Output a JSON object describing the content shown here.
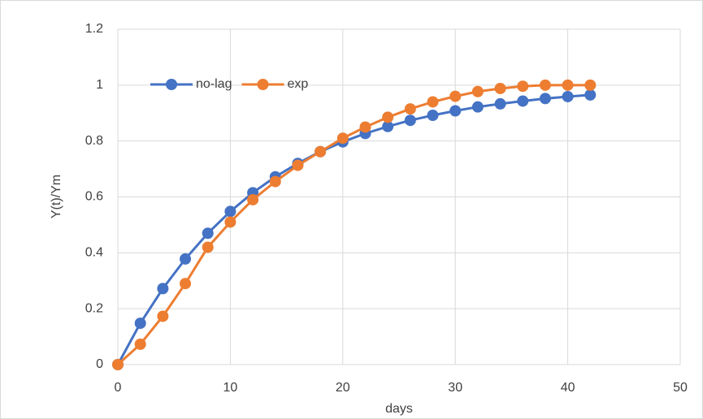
{
  "chart_data": {
    "type": "line",
    "x_label": "days",
    "y_label": "Y(t)/Ym",
    "x": [
      0,
      2,
      4,
      6,
      8,
      10,
      12,
      14,
      16,
      18,
      20,
      22,
      24,
      26,
      28,
      30,
      32,
      34,
      36,
      38,
      40,
      42
    ],
    "series": [
      {
        "name": "no-lag",
        "color": "#4472c4",
        "values": [
          0,
          0.148,
          0.272,
          0.378,
          0.47,
          0.548,
          0.615,
          0.672,
          0.72,
          0.762,
          0.797,
          0.827,
          0.852,
          0.874,
          0.892,
          0.908,
          0.922,
          0.933,
          0.943,
          0.952,
          0.959,
          0.965
        ]
      },
      {
        "name": "exp",
        "color": "#ed7d31",
        "values": [
          0,
          0.073,
          0.173,
          0.29,
          0.42,
          0.51,
          0.59,
          0.655,
          0.713,
          0.762,
          0.81,
          0.85,
          0.885,
          0.915,
          0.94,
          0.96,
          0.977,
          0.988,
          0.996,
          1.0,
          1.0,
          1.0
        ]
      }
    ],
    "xlim": [
      0,
      50
    ],
    "xticks": [
      0,
      10,
      20,
      30,
      40,
      50
    ],
    "ylim": [
      0,
      1.2
    ],
    "yticks": [
      0,
      0.2,
      0.4,
      0.6,
      0.8,
      1,
      1.2
    ],
    "grid": true,
    "legend": "top-left"
  }
}
